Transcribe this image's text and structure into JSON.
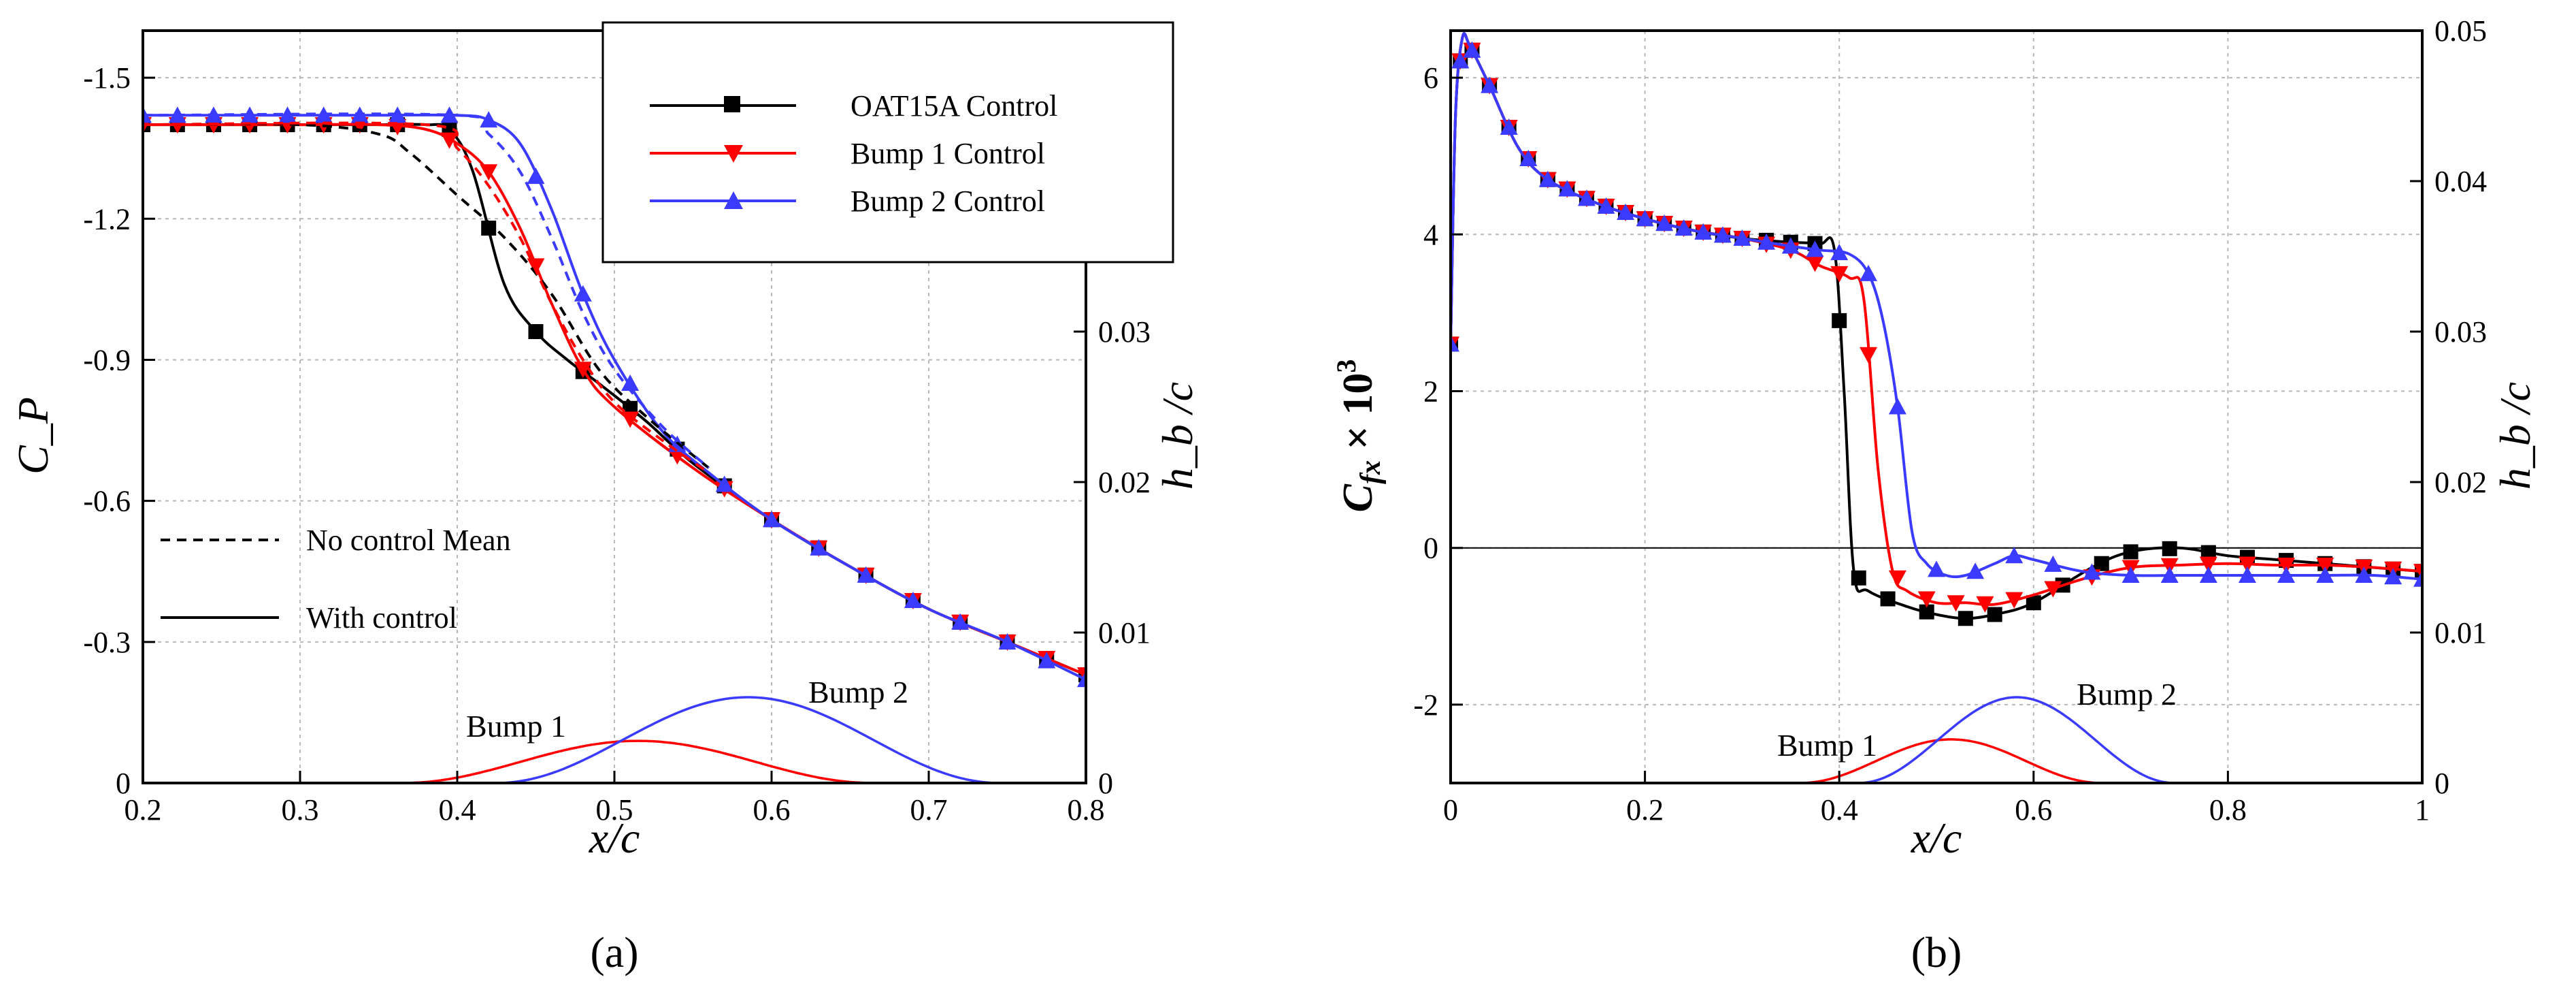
{
  "chart_data": [
    {
      "panel_label": "(a)",
      "type": "line",
      "xlabel": "x/c",
      "ylabel": "C_P",
      "y2label": "h_b /c",
      "xlim": [
        0.2,
        0.8
      ],
      "ylim": [
        0,
        -1.6
      ],
      "y2lim": [
        0,
        0.05
      ],
      "xticks": [
        "0.2",
        "0.3",
        "0.4",
        "0.5",
        "0.6",
        "0.7",
        "0.8"
      ],
      "xtick_values": [
        0.2,
        0.3,
        0.4,
        0.5,
        0.6,
        0.7,
        0.8
      ],
      "yticks": [
        "0",
        "-0.3",
        "-0.6",
        "-0.9",
        "-1.2",
        "-1.5"
      ],
      "ytick_values": [
        0,
        -0.3,
        -0.6,
        -0.9,
        -1.2,
        -1.5
      ],
      "y2ticks": [
        "0",
        "0.01",
        "0.02",
        "0.03"
      ],
      "y2tick_values": [
        0,
        0.01,
        0.02,
        0.03
      ],
      "legend": [
        {
          "label": "OAT15A Control",
          "color": "#000000",
          "marker": "square"
        },
        {
          "label": "Bump 1 Control",
          "color": "#ff0000",
          "marker": "triangle-down"
        },
        {
          "label": "Bump 2 Control",
          "color": "#3b3bff",
          "marker": "triangle-up"
        }
      ],
      "style_legend": [
        {
          "label": "No control Mean",
          "dash": "dashed"
        },
        {
          "label": "With control",
          "dash": "solid"
        }
      ],
      "series": [
        {
          "name": "OAT15A Control",
          "color": "#000000",
          "marker": "square",
          "dash": "solid",
          "x": [
            0.2,
            0.23,
            0.26,
            0.29,
            0.32,
            0.35,
            0.38,
            0.395,
            0.41,
            0.43,
            0.45,
            0.47,
            0.49,
            0.52,
            0.55,
            0.6,
            0.65,
            0.7,
            0.75,
            0.8
          ],
          "y": [
            -1.4,
            -1.4,
            -1.4,
            -1.4,
            -1.4,
            -1.4,
            -1.4,
            -1.39,
            -1.3,
            -1.06,
            -0.96,
            -0.9,
            -0.85,
            -0.77,
            -0.68,
            -0.56,
            -0.46,
            -0.37,
            -0.3,
            -0.23
          ],
          "marker_x": [
            0.2,
            0.222,
            0.245,
            0.268,
            0.292,
            0.315,
            0.338,
            0.362,
            0.395,
            0.42,
            0.45,
            0.48,
            0.51,
            0.54,
            0.57,
            0.6,
            0.63,
            0.66,
            0.69,
            0.72,
            0.75,
            0.775,
            0.8
          ]
        },
        {
          "name": "Bump 1 Control",
          "color": "#ff0000",
          "marker": "triangle-down",
          "dash": "solid",
          "x": [
            0.2,
            0.25,
            0.3,
            0.35,
            0.38,
            0.4,
            0.42,
            0.44,
            0.46,
            0.48,
            0.5,
            0.55,
            0.6,
            0.65,
            0.7,
            0.75,
            0.8
          ],
          "y": [
            -1.4,
            -1.4,
            -1.4,
            -1.4,
            -1.39,
            -1.36,
            -1.3,
            -1.18,
            -1.02,
            -0.88,
            -0.8,
            -0.67,
            -0.56,
            -0.46,
            -0.37,
            -0.3,
            -0.23
          ],
          "marker_x": [
            0.2,
            0.222,
            0.245,
            0.268,
            0.292,
            0.315,
            0.338,
            0.362,
            0.395,
            0.42,
            0.45,
            0.48,
            0.51,
            0.54,
            0.57,
            0.6,
            0.63,
            0.66,
            0.69,
            0.72,
            0.75,
            0.775,
            0.8
          ]
        },
        {
          "name": "Bump 2 Control",
          "color": "#3b3bff",
          "marker": "triangle-up",
          "dash": "solid",
          "x": [
            0.2,
            0.25,
            0.3,
            0.35,
            0.4,
            0.42,
            0.44,
            0.46,
            0.48,
            0.5,
            0.53,
            0.56,
            0.6,
            0.65,
            0.7,
            0.75,
            0.8
          ],
          "y": [
            -1.42,
            -1.42,
            -1.42,
            -1.42,
            -1.42,
            -1.41,
            -1.36,
            -1.22,
            -1.04,
            -0.9,
            -0.75,
            -0.66,
            -0.56,
            -0.46,
            -0.37,
            -0.3,
            -0.22
          ],
          "marker_x": [
            0.2,
            0.222,
            0.245,
            0.268,
            0.292,
            0.315,
            0.338,
            0.362,
            0.395,
            0.42,
            0.45,
            0.48,
            0.51,
            0.54,
            0.57,
            0.6,
            0.63,
            0.66,
            0.69,
            0.72,
            0.75,
            0.775,
            0.8
          ]
        },
        {
          "name": "OAT15A No control Mean",
          "color": "#000000",
          "marker": "none",
          "dash": "dashed",
          "x": [
            0.2,
            0.3,
            0.35,
            0.37,
            0.4,
            0.43,
            0.46,
            0.49,
            0.52,
            0.56
          ],
          "y": [
            -1.4,
            -1.4,
            -1.38,
            -1.34,
            -1.25,
            -1.16,
            -1.04,
            -0.88,
            -0.78,
            -0.67
          ]
        },
        {
          "name": "Bump 1 No control Mean",
          "color": "#ff0000",
          "marker": "none",
          "dash": "dashed",
          "x": [
            0.2,
            0.38,
            0.4,
            0.42,
            0.44,
            0.46,
            0.48,
            0.5,
            0.53,
            0.56
          ],
          "y": [
            -1.4,
            -1.4,
            -1.35,
            -1.27,
            -1.16,
            -1.02,
            -0.9,
            -0.81,
            -0.73,
            -0.66
          ]
        },
        {
          "name": "Bump 2 No control Mean",
          "color": "#3b3bff",
          "marker": "none",
          "dash": "dashed",
          "x": [
            0.2,
            0.4,
            0.42,
            0.44,
            0.46,
            0.48,
            0.5,
            0.53,
            0.56
          ],
          "y": [
            -1.42,
            -1.42,
            -1.38,
            -1.3,
            -1.16,
            -1.0,
            -0.88,
            -0.76,
            -0.67
          ]
        },
        {
          "name": "Bump 1 shape",
          "color": "#ff0000",
          "marker": "none",
          "dash": "solid",
          "axis": "y2",
          "shape": "bump",
          "x0": 0.365,
          "x1": 0.665,
          "height": 0.0028
        },
        {
          "name": "Bump 2 shape",
          "color": "#3b3bff",
          "marker": "none",
          "dash": "solid",
          "axis": "y2",
          "shape": "bump",
          "x0": 0.425,
          "x1": 0.745,
          "height": 0.0057
        }
      ],
      "annotations": [
        "Bump 1",
        "Bump 2"
      ]
    },
    {
      "panel_label": "(b)",
      "type": "line",
      "xlabel": "x/c",
      "ylabel": "C_fx × 10^3",
      "y2label": "h_b /c",
      "xlim": [
        0,
        1
      ],
      "ylim": [
        -3,
        6.6
      ],
      "y2lim": [
        0,
        0.05
      ],
      "xticks": [
        "0",
        "0.2",
        "0.4",
        "0.6",
        "0.8",
        "1"
      ],
      "xtick_values": [
        0,
        0.2,
        0.4,
        0.6,
        0.8,
        1
      ],
      "yticks": [
        "-2",
        "0",
        "2",
        "4",
        "6"
      ],
      "ytick_values": [
        -2,
        0,
        2,
        4,
        6
      ],
      "y2ticks": [
        "0",
        "0.01",
        "0.02",
        "0.03",
        "0.04",
        "0.05"
      ],
      "y2tick_values": [
        0,
        0.01,
        0.02,
        0.03,
        0.04,
        0.05
      ],
      "series": [
        {
          "name": "OAT15A Control",
          "color": "#000000",
          "marker": "square",
          "dash": "solid",
          "x": [
            0,
            0.005,
            0.012,
            0.02,
            0.04,
            0.07,
            0.1,
            0.15,
            0.2,
            0.25,
            0.3,
            0.35,
            0.38,
            0.395,
            0.405,
            0.415,
            0.43,
            0.47,
            0.5,
            0.53,
            0.56,
            0.6,
            0.66,
            0.7,
            0.75,
            0.8,
            0.85,
            0.9,
            0.95,
            1.0
          ],
          "y": [
            2.6,
            5.5,
            6.5,
            6.4,
            5.9,
            5.1,
            4.7,
            4.4,
            4.2,
            4.05,
            3.95,
            3.9,
            3.88,
            3.8,
            2.0,
            -0.3,
            -0.55,
            -0.75,
            -0.85,
            -0.9,
            -0.85,
            -0.7,
            -0.25,
            -0.05,
            0.0,
            -0.1,
            -0.15,
            -0.2,
            -0.25,
            -0.3
          ],
          "marker_x": [
            0,
            0.01,
            0.022,
            0.04,
            0.06,
            0.08,
            0.1,
            0.12,
            0.14,
            0.16,
            0.18,
            0.2,
            0.22,
            0.24,
            0.26,
            0.28,
            0.3,
            0.325,
            0.35,
            0.375,
            0.4,
            0.42,
            0.45,
            0.49,
            0.53,
            0.56,
            0.6,
            0.63,
            0.67,
            0.7,
            0.74,
            0.78,
            0.82,
            0.86,
            0.9,
            0.94,
            0.97,
            1.0
          ]
        },
        {
          "name": "Bump 1 Control",
          "color": "#ff0000",
          "marker": "triangle-down",
          "dash": "solid",
          "x": [
            0,
            0.005,
            0.012,
            0.02,
            0.04,
            0.07,
            0.1,
            0.15,
            0.2,
            0.25,
            0.3,
            0.35,
            0.38,
            0.41,
            0.425,
            0.44,
            0.455,
            0.47,
            0.5,
            0.53,
            0.56,
            0.6,
            0.65,
            0.7,
            0.75,
            0.8,
            0.85,
            0.9,
            0.95,
            1.0
          ],
          "y": [
            2.6,
            5.5,
            6.5,
            6.4,
            5.9,
            5.1,
            4.7,
            4.4,
            4.2,
            4.05,
            3.95,
            3.8,
            3.6,
            3.45,
            3.2,
            1.0,
            -0.3,
            -0.55,
            -0.7,
            -0.7,
            -0.72,
            -0.6,
            -0.4,
            -0.25,
            -0.22,
            -0.2,
            -0.22,
            -0.22,
            -0.25,
            -0.3
          ],
          "marker_x": [
            0,
            0.01,
            0.022,
            0.04,
            0.06,
            0.08,
            0.1,
            0.12,
            0.14,
            0.16,
            0.18,
            0.2,
            0.22,
            0.24,
            0.26,
            0.28,
            0.3,
            0.325,
            0.35,
            0.375,
            0.4,
            0.43,
            0.46,
            0.49,
            0.52,
            0.55,
            0.58,
            0.62,
            0.66,
            0.7,
            0.74,
            0.78,
            0.82,
            0.86,
            0.9,
            0.94,
            0.97,
            1.0
          ]
        },
        {
          "name": "Bump 2 Control",
          "color": "#3b3bff",
          "marker": "triangle-up",
          "dash": "solid",
          "x": [
            0,
            0.005,
            0.012,
            0.02,
            0.04,
            0.07,
            0.1,
            0.15,
            0.2,
            0.25,
            0.3,
            0.35,
            0.38,
            0.41,
            0.43,
            0.445,
            0.46,
            0.475,
            0.49,
            0.51,
            0.53,
            0.56,
            0.58,
            0.6,
            0.65,
            0.7,
            0.75,
            0.8,
            0.85,
            0.9,
            0.95,
            1.0
          ],
          "y": [
            2.6,
            5.5,
            6.5,
            6.4,
            5.9,
            5.1,
            4.7,
            4.4,
            4.2,
            4.05,
            3.95,
            3.85,
            3.8,
            3.75,
            3.5,
            2.9,
            1.8,
            0.2,
            -0.2,
            -0.35,
            -0.35,
            -0.2,
            -0.1,
            -0.15,
            -0.3,
            -0.35,
            -0.35,
            -0.35,
            -0.35,
            -0.35,
            -0.35,
            -0.4
          ],
          "marker_x": [
            0,
            0.01,
            0.022,
            0.04,
            0.06,
            0.08,
            0.1,
            0.12,
            0.14,
            0.16,
            0.18,
            0.2,
            0.22,
            0.24,
            0.26,
            0.28,
            0.3,
            0.325,
            0.35,
            0.375,
            0.4,
            0.43,
            0.46,
            0.5,
            0.54,
            0.58,
            0.62,
            0.66,
            0.7,
            0.74,
            0.78,
            0.82,
            0.86,
            0.9,
            0.94,
            0.97,
            1.0
          ]
        },
        {
          "name": "Bump 1 shape",
          "color": "#ff0000",
          "marker": "none",
          "dash": "solid",
          "axis": "y2",
          "shape": "bump",
          "x0": 0.36,
          "x1": 0.67,
          "height": 0.0029
        },
        {
          "name": "Bump 2 shape",
          "color": "#3b3bff",
          "marker": "none",
          "dash": "solid",
          "axis": "y2",
          "shape": "bump",
          "x0": 0.42,
          "x1": 0.745,
          "height": 0.0057
        }
      ],
      "annotations": [
        "Bump 1",
        "Bump 2"
      ]
    }
  ]
}
